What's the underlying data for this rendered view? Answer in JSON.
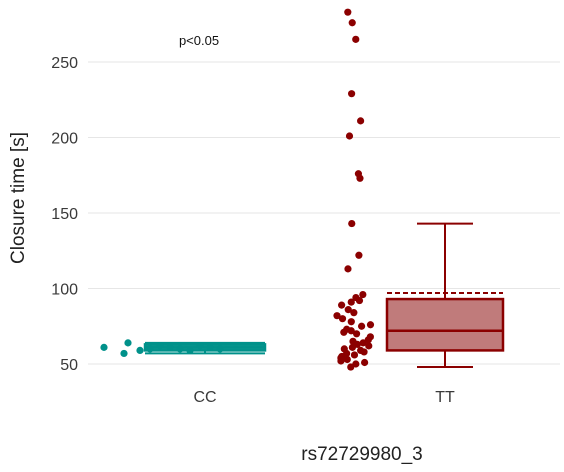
{
  "chart_data": {
    "type": "boxplot",
    "xlabel": "rs72729980_3",
    "ylabel": "Closure time [s]",
    "annotation": "p<0.05",
    "y_ticks": [
      50,
      100,
      150,
      200,
      250
    ],
    "y_tick_labels": [
      "50",
      "100",
      "150",
      "200",
      "250"
    ],
    "ylim": [
      40,
      285
    ],
    "grid": true,
    "categories": [
      "CC",
      "TT"
    ],
    "colors": {
      "CC": "#00918a",
      "TT": "#8b0000"
    },
    "box_fill": {
      "CC": "#00918a",
      "TT": "#c07b7b"
    },
    "boxes": [
      {
        "category": "CC",
        "whisker_low": 57,
        "q1": 59,
        "median": 61,
        "q3": 63,
        "whisker_high": 64,
        "mean": 61
      },
      {
        "category": "TT",
        "whisker_low": 48,
        "q1": 59,
        "median": 72,
        "q3": 93,
        "whisker_high": 143,
        "mean": 97
      }
    ],
    "points": {
      "CC": [
        61,
        57,
        64,
        59,
        60,
        62,
        61,
        60,
        59,
        62,
        61,
        60
      ],
      "TT": [
        283,
        276,
        265,
        229,
        211,
        201,
        176,
        173,
        143,
        122,
        113,
        96,
        94,
        92,
        91,
        89,
        86,
        84,
        82,
        80,
        78,
        76,
        75,
        73,
        72,
        71,
        70,
        68,
        66,
        65,
        64,
        63,
        62,
        61,
        60,
        59,
        58,
        57,
        56,
        55,
        54,
        53,
        52,
        51,
        50,
        48
      ]
    }
  }
}
